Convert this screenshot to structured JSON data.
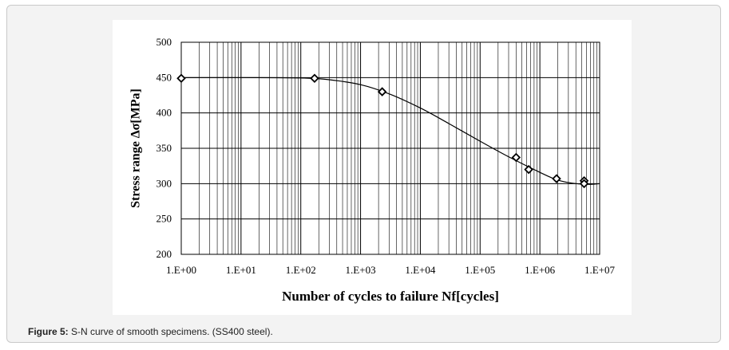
{
  "caption": {
    "label": "Figure 5:",
    "text": " S-N curve of smooth specimens. (SS400 steel)."
  },
  "chart_data": {
    "type": "scatter",
    "title": "",
    "xlabel": "Number of  cycles to failure Nf[cycles]",
    "ylabel": "Stress range ∆σ[MPa]",
    "xscale": "log",
    "xlim": [
      1,
      10000000
    ],
    "ylim": [
      200,
      500
    ],
    "x_ticks": [
      1,
      10,
      100,
      1000,
      10000,
      100000,
      1000000,
      10000000
    ],
    "x_tick_labels": [
      "1.E+00",
      "1.E+01",
      "1.E+02",
      "1.E+03",
      "1.E+04",
      "1.E+05",
      "1.E+06",
      "1.E+07"
    ],
    "y_ticks": [
      200,
      250,
      300,
      350,
      400,
      450,
      500
    ],
    "y_tick_labels": [
      "200",
      "250",
      "300",
      "350",
      "400",
      "450",
      "500"
    ],
    "grid": true,
    "legend": "none",
    "series": [
      {
        "marker": "diamond",
        "x": [
          1,
          170,
          2300,
          400000,
          650000,
          1900000,
          5500000,
          5500000
        ],
        "y": [
          449,
          449,
          430,
          337,
          320,
          307,
          304,
          300
        ]
      }
    ],
    "fit_curve": {
      "x": [
        1,
        10,
        100,
        300,
        1000,
        3000,
        10000,
        30000,
        100000,
        300000,
        1000000,
        2000000,
        4000000,
        7000000,
        10000000
      ],
      "y": [
        450,
        450,
        449.5,
        447,
        440,
        427,
        407,
        385,
        360,
        338,
        316,
        305,
        300,
        299,
        300
      ]
    },
    "marker_color": "#000000",
    "line_color": "#000000"
  }
}
